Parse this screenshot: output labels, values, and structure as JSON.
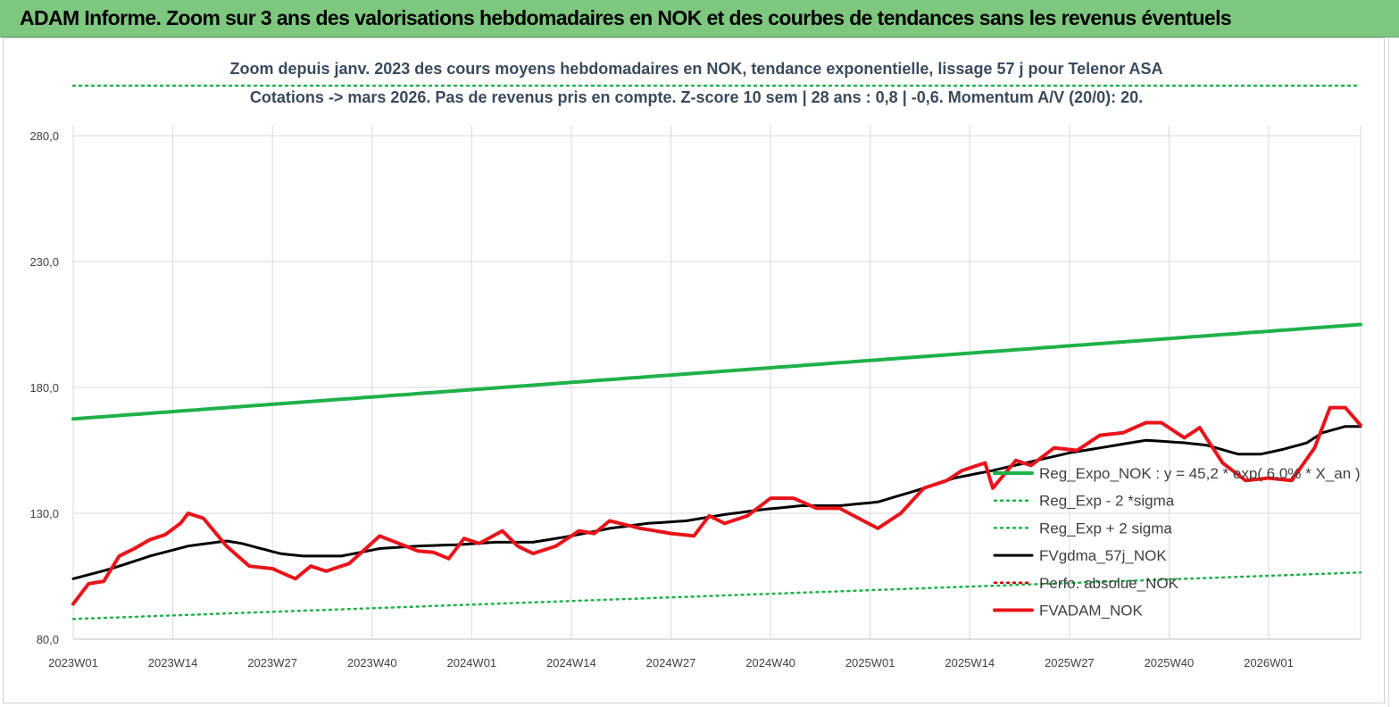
{
  "banner": {
    "title": "ADAM Informe. Zoom sur 3 ans des valorisations hebdomadaires en NOK et des courbes de tendances sans les revenus éventuels"
  },
  "colors": {
    "banner_bg": "#7dc77e",
    "reg_expo": "#1fb14a",
    "sigma": "#1fb14a",
    "fvgdma": "#000000",
    "perfo": "#c00000",
    "fvadam": "#e8141b"
  },
  "chart_data": {
    "type": "line",
    "title_line1": "Zoom depuis janv. 2023 des cours moyens hebdomadaires en NOK, tendance exponentielle, lissage 57 j pour Telenor ASA",
    "title_line2": "Cotations -> mars 2026. Pas de revenus pris en compte. Z-score 10 sem | 28 ans : 0,8 | -0,6. Momentum A/V (20/0): 20.",
    "ylim": [
      80,
      300
    ],
    "y_ticks": [
      80,
      130,
      180,
      230,
      280
    ],
    "y_tick_labels": [
      "80,0",
      "130,0",
      "180,0",
      "230,0",
      "280,0"
    ],
    "x_tick_labels": [
      "2023W01",
      "2023W14",
      "2023W27",
      "2023W40",
      "2024W01",
      "2024W14",
      "2024W27",
      "2024W40",
      "2025W01",
      "2025W14",
      "2025W27",
      "2025W40",
      "2026W01"
    ],
    "x_tick_index": [
      0,
      13,
      26,
      39,
      52,
      65,
      78,
      91,
      104,
      117,
      130,
      143,
      156
    ],
    "n_weeks": 169,
    "grid": true,
    "legend_position": "right-inside",
    "series": [
      {
        "name": "Reg_Expo_NOK : y = 45,2 * exp( 6,0% *  X_an )",
        "style": "solid-thick",
        "color_key": "reg_expo",
        "anchors": [
          [
            0,
            167.5
          ],
          [
            168,
            205
          ]
        ]
      },
      {
        "name": "Reg_Exp - 2 *sigma",
        "style": "dotted",
        "color_key": "sigma",
        "anchors": [
          [
            0,
            88
          ],
          [
            168,
            106.5
          ]
        ]
      },
      {
        "name": "Reg_Exp + 2 sigma",
        "style": "dotted",
        "color_key": "sigma",
        "anchors": [
          [
            0,
            302
          ],
          [
            168,
            302
          ]
        ]
      },
      {
        "name": "FVgdma_57j_NOK",
        "style": "solid",
        "color_key": "fvgdma",
        "anchors": [
          [
            0,
            104
          ],
          [
            5,
            108
          ],
          [
            10,
            113
          ],
          [
            15,
            117
          ],
          [
            20,
            119
          ],
          [
            22,
            118
          ],
          [
            27,
            114
          ],
          [
            30,
            113
          ],
          [
            35,
            113
          ],
          [
            40,
            116
          ],
          [
            45,
            117
          ],
          [
            50,
            117.5
          ],
          [
            55,
            118.5
          ],
          [
            60,
            118.5
          ],
          [
            65,
            121
          ],
          [
            70,
            124
          ],
          [
            75,
            126
          ],
          [
            80,
            127
          ],
          [
            85,
            129.5
          ],
          [
            90,
            131.5
          ],
          [
            95,
            133
          ],
          [
            100,
            133
          ],
          [
            105,
            134.5
          ],
          [
            110,
            139
          ],
          [
            115,
            144
          ],
          [
            120,
            147
          ],
          [
            125,
            150.5
          ],
          [
            130,
            154
          ],
          [
            135,
            156.5
          ],
          [
            140,
            159
          ],
          [
            145,
            158
          ],
          [
            148,
            157
          ],
          [
            152,
            153.5
          ],
          [
            155,
            153.5
          ],
          [
            158,
            155.5
          ],
          [
            161,
            158
          ],
          [
            163,
            162
          ],
          [
            166,
            164.5
          ],
          [
            168,
            164.5
          ]
        ]
      },
      {
        "name": "Perfo. absolue_NOK",
        "style": "dotted",
        "color_key": "perfo",
        "anchors": []
      },
      {
        "name": "FVADAM_NOK",
        "style": "solid-thick",
        "color_key": "fvadam",
        "anchors": [
          [
            0,
            94
          ],
          [
            2,
            102
          ],
          [
            4,
            103
          ],
          [
            6,
            113
          ],
          [
            8,
            116
          ],
          [
            10,
            119.5
          ],
          [
            12,
            121.5
          ],
          [
            14,
            126
          ],
          [
            15,
            130
          ],
          [
            17,
            128
          ],
          [
            20,
            117
          ],
          [
            23,
            109
          ],
          [
            26,
            108
          ],
          [
            29,
            104
          ],
          [
            31,
            109
          ],
          [
            33,
            107
          ],
          [
            36,
            110
          ],
          [
            40,
            121
          ],
          [
            45,
            115
          ],
          [
            47,
            114.5
          ],
          [
            49,
            112
          ],
          [
            51,
            120
          ],
          [
            53,
            118
          ],
          [
            56,
            123
          ],
          [
            58,
            117
          ],
          [
            60,
            114
          ],
          [
            63,
            117
          ],
          [
            66,
            123
          ],
          [
            68,
            122
          ],
          [
            70,
            127
          ],
          [
            74,
            124
          ],
          [
            78,
            122
          ],
          [
            81,
            121
          ],
          [
            83,
            129
          ],
          [
            85,
            126
          ],
          [
            88,
            129
          ],
          [
            91,
            136
          ],
          [
            94,
            136
          ],
          [
            97,
            132
          ],
          [
            100,
            132
          ],
          [
            105,
            124
          ],
          [
            108,
            130
          ],
          [
            111,
            140
          ],
          [
            114,
            143
          ],
          [
            116,
            147
          ],
          [
            119,
            150
          ],
          [
            120,
            140
          ],
          [
            123,
            151
          ],
          [
            125,
            149
          ],
          [
            128,
            156
          ],
          [
            131,
            155
          ],
          [
            134,
            161
          ],
          [
            137,
            162
          ],
          [
            140,
            166
          ],
          [
            142,
            166
          ],
          [
            145,
            160
          ],
          [
            147,
            164
          ],
          [
            150,
            150
          ],
          [
            153,
            143
          ],
          [
            156,
            144
          ],
          [
            159,
            143
          ],
          [
            162,
            156
          ],
          [
            164,
            172
          ],
          [
            166,
            172
          ],
          [
            168,
            165
          ]
        ]
      }
    ]
  }
}
